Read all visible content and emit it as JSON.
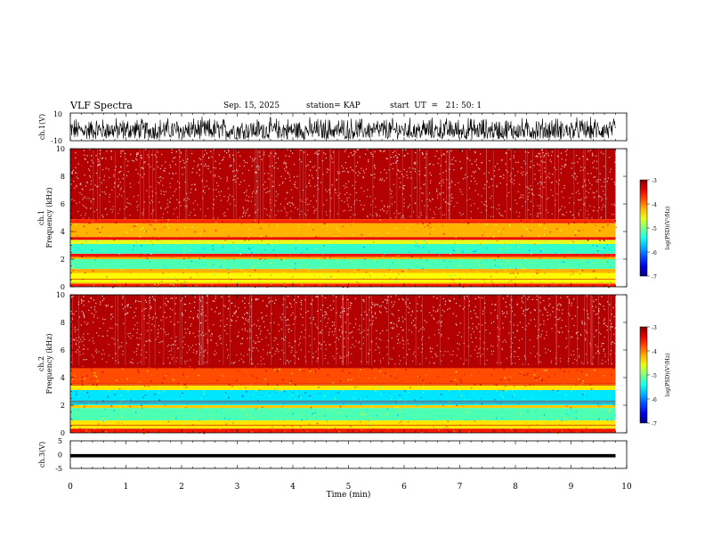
{
  "header": {
    "title": "VLF Spectra",
    "date": "Sep. 15, 2025",
    "station": "station= KAP",
    "start": "start  UT  =   21: 50: 1"
  },
  "chart_data": [
    {
      "type": "line",
      "name": "ch1-waveform",
      "ylabel": "ch.1(V)",
      "ylim": [
        -10,
        10
      ],
      "yticks": [
        "10",
        "-10"
      ],
      "xlim": [
        0,
        10
      ],
      "description_values": {
        "amplitude_range": [
          -9,
          8
        ],
        "data_end_min": 9.8
      }
    },
    {
      "type": "heatmap",
      "name": "ch1-spectrogram",
      "ylabel": "ch.1\nFrequency (kHz)",
      "ylabel_lines": [
        "ch.1",
        "Frequency  (kHz)"
      ],
      "ylim": [
        0,
        10
      ],
      "yticks": [
        "0",
        "2",
        "4",
        "6",
        "8",
        "10"
      ],
      "xlim": [
        0,
        10
      ],
      "data_end_min": 9.8,
      "bands": [
        {
          "from": 0,
          "to": 0.2,
          "level": -3.6
        },
        {
          "from": 0.2,
          "to": 1.0,
          "level": -4.5
        },
        {
          "from": 1.0,
          "to": 1.3,
          "level": -4.2
        },
        {
          "from": 1.3,
          "to": 2.0,
          "level": -5.2
        },
        {
          "from": 2.0,
          "to": 2.2,
          "level": -4.2
        },
        {
          "from": 2.2,
          "to": 2.4,
          "level": -3.6
        },
        {
          "from": 2.4,
          "to": 3.1,
          "level": -5.3
        },
        {
          "from": 3.1,
          "to": 3.4,
          "level": -4.6
        },
        {
          "from": 3.4,
          "to": 3.6,
          "level": -3.5
        },
        {
          "from": 3.6,
          "to": 4.6,
          "level": -4.2
        },
        {
          "from": 4.6,
          "to": 4.9,
          "level": -3.7
        },
        {
          "from": 4.9,
          "to": 10,
          "level": -3.2
        }
      ],
      "colorbar": {
        "label": "log(PSD)(V²/Hz)",
        "range": [
          -7,
          -3
        ],
        "ticks": [
          "-3",
          "-4",
          "-5",
          "-6",
          "-7"
        ]
      }
    },
    {
      "type": "heatmap",
      "name": "ch2-spectrogram",
      "ylabel_lines": [
        "ch.2",
        "Frequency  (kHz)"
      ],
      "ylim": [
        0,
        10
      ],
      "yticks": [
        "0",
        "2",
        "4",
        "6",
        "8",
        "10"
      ],
      "xlim": [
        0,
        10
      ],
      "data_end_min": 9.8,
      "bands": [
        {
          "from": 0,
          "to": 0.3,
          "level": -3.6
        },
        {
          "from": 0.3,
          "to": 0.9,
          "level": -4.4
        },
        {
          "from": 0.9,
          "to": 1.8,
          "level": -5.2
        },
        {
          "from": 1.8,
          "to": 2.0,
          "level": -4.3
        },
        {
          "from": 2.0,
          "to": 3.1,
          "level": -5.6
        },
        {
          "from": 3.1,
          "to": 3.5,
          "level": -4.4
        },
        {
          "from": 3.5,
          "to": 4.7,
          "level": -3.8
        },
        {
          "from": 4.7,
          "to": 10,
          "level": -3.2
        }
      ],
      "colorbar": {
        "label": "log(PSD)(V²/Hz)",
        "range": [
          -7,
          -3
        ],
        "ticks": [
          "-3",
          "-4",
          "-5",
          "-6",
          "-7"
        ]
      }
    },
    {
      "type": "line",
      "name": "ch3-waveform",
      "ylabel": "ch.3(V)",
      "ylim": [
        -5,
        5
      ],
      "yticks": [
        "5",
        "0",
        "-5"
      ],
      "xlim": [
        0,
        10
      ],
      "data_end_min": 9.8,
      "level_band": [
        -1,
        0.2
      ]
    }
  ],
  "xaxis": {
    "label": "Time  (min)",
    "ticks": [
      "0",
      "1",
      "2",
      "3",
      "4",
      "5",
      "6",
      "7",
      "8",
      "9",
      "10"
    ]
  }
}
